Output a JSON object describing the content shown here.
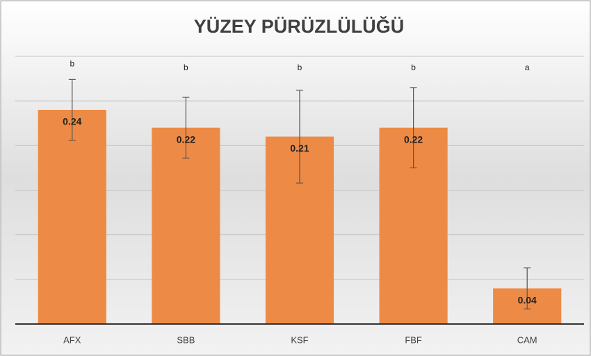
{
  "chart_data": {
    "type": "bar",
    "title": "YÜZEY PÜRÜZLÜLÜĞÜ",
    "categories": [
      "AFX",
      "SBB",
      "KSF",
      "FBF",
      "CAM"
    ],
    "values": [
      0.24,
      0.22,
      0.21,
      0.22,
      0.04
    ],
    "errors": [
      0.034,
      0.034,
      0.052,
      0.045,
      0.023
    ],
    "letters": [
      "b",
      "b",
      "b",
      "b",
      "a"
    ],
    "color": "#ed8b46",
    "ylim": [
      0,
      0.3
    ],
    "yticks": [
      0,
      0.05,
      0.1,
      0.15,
      0.2,
      0.25,
      0.3
    ],
    "grid": true
  }
}
